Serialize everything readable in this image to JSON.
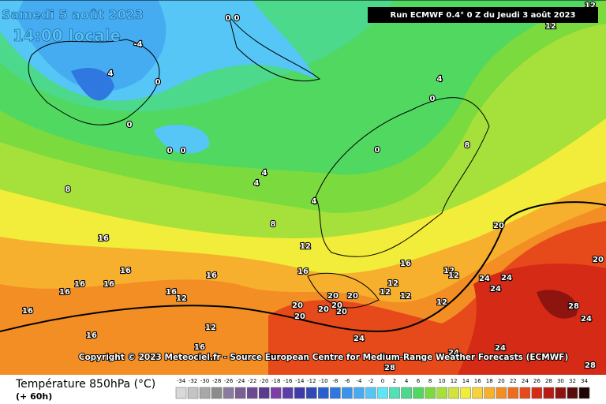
{
  "header": {
    "date": "Samedi 5 août 2023",
    "time": "14:00 locale",
    "run": "Run ECMWF 0.4° 0 Z du Jeudi 3 août 2023"
  },
  "map": {
    "copyright": "Copyright © 2023 Meteociel.fr - Source European Centre for Medium-Range Weather Forecasts (ECMWF)",
    "contour_labels": [
      0,
      0,
      -4,
      4,
      0,
      0,
      0,
      0,
      0,
      0,
      4,
      8,
      4,
      4,
      4,
      8,
      8,
      12,
      16,
      16,
      16,
      16,
      16,
      16,
      16,
      12,
      12,
      16,
      16,
      16,
      16,
      16,
      20,
      12,
      12,
      12,
      12,
      12,
      12,
      24,
      24,
      24,
      20,
      20,
      20,
      20,
      20,
      20,
      20,
      20,
      28,
      24,
      24,
      24,
      24,
      28,
      28,
      12,
      12
    ]
  },
  "legend": {
    "title": "Température 850hPa (°C)",
    "subtitle": "(+ 60h)",
    "ticks": [
      -34,
      -32,
      -30,
      -28,
      -26,
      -24,
      -22,
      -20,
      -18,
      -16,
      -14,
      -12,
      -10,
      -8,
      -6,
      -4,
      -2,
      0,
      2,
      4,
      6,
      8,
      10,
      12,
      14,
      16,
      18,
      20,
      22,
      24,
      26,
      28,
      30,
      32,
      34
    ],
    "colors": [
      "#d9d9d9",
      "#c4c4c4",
      "#a8a8a8",
      "#8c8c8c",
      "#8a7a9c",
      "#7a5f96",
      "#6a4a90",
      "#5a3a8c",
      "#7b3fa6",
      "#5c3ea8",
      "#3e3aa8",
      "#2f4ab8",
      "#2a5fd0",
      "#2f78e0",
      "#3a92ea",
      "#46acf2",
      "#55c6f6",
      "#5fe6f6",
      "#52e0b8",
      "#4cd98c",
      "#50d860",
      "#7ada3e",
      "#a6e03a",
      "#d0e43a",
      "#f2ec3a",
      "#f7d23a",
      "#f7b02e",
      "#f38e24",
      "#ee6c1e",
      "#e64a1a",
      "#d42a16",
      "#b81a14",
      "#8e1410",
      "#5a0c0a",
      "#200404"
    ]
  }
}
